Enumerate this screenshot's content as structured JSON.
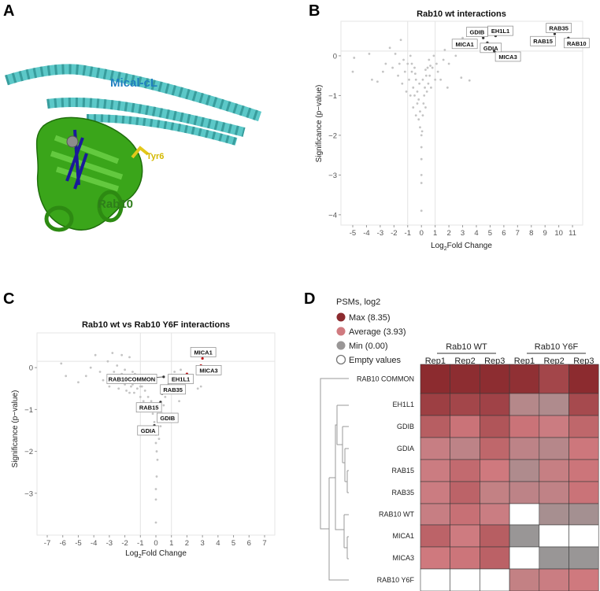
{
  "panels": {
    "a": "A",
    "b": "B",
    "c": "C",
    "d": "D"
  },
  "structure": {
    "mical_label": "Mical-cL",
    "rab_label": "Rab10",
    "tyr_label": "Tyr6",
    "colors": {
      "mical": "#5cc8c8",
      "rab": "#3aa51a",
      "tyr": "#e3c81a",
      "ligand": "#1a1a9a"
    }
  },
  "chart_data": [
    {
      "type": "scatter",
      "title": "Rab10 wt interactions",
      "xlabel_prefix": "Log",
      "xlabel_sub": "2",
      "xlabel_suffix": "Fold Change",
      "ylabel": "Significance (p−value)",
      "xlim": [
        -5.86,
        11.74
      ],
      "ylim": [
        -4.26,
        0.87
      ],
      "xticks": [
        -5,
        -4,
        -3,
        -2,
        -1,
        0,
        1,
        2,
        3,
        4,
        5,
        6,
        7,
        8,
        9,
        10,
        11
      ],
      "yticks": [
        0,
        -1,
        -2,
        -3,
        -4
      ],
      "vlines": [
        -1,
        1
      ],
      "hline": 0.12,
      "grid": false,
      "points": [
        [
          -4.9,
          -0.05
        ],
        [
          -5.0,
          -0.4
        ],
        [
          -3.8,
          0.05
        ],
        [
          -3.6,
          -0.6
        ],
        [
          -3.2,
          -0.65
        ],
        [
          -2.8,
          -0.4
        ],
        [
          -2.6,
          -0.2
        ],
        [
          -2.3,
          0.2
        ],
        [
          -2.1,
          -0.3
        ],
        [
          -1.9,
          0.05
        ],
        [
          -1.7,
          -0.5
        ],
        [
          -1.6,
          -0.2
        ],
        [
          -1.5,
          0.4
        ],
        [
          -1.4,
          -0.7
        ],
        [
          -1.3,
          -0.1
        ],
        [
          -1.2,
          -0.4
        ],
        [
          -1.1,
          -0.9
        ],
        [
          -1.0,
          -0.2
        ],
        [
          -0.9,
          -0.6
        ],
        [
          -0.8,
          0.0
        ],
        [
          -0.8,
          -1.0
        ],
        [
          -0.7,
          -0.4
        ],
        [
          -0.6,
          -0.8
        ],
        [
          -0.6,
          -1.3
        ],
        [
          -0.5,
          -0.3
        ],
        [
          -0.5,
          -1.0
        ],
        [
          -0.4,
          -0.6
        ],
        [
          -0.4,
          -1.5
        ],
        [
          -0.3,
          -1.2
        ],
        [
          -0.3,
          -0.9
        ],
        [
          -0.2,
          -1.6
        ],
        [
          -0.2,
          -1.1
        ],
        [
          -0.1,
          -1.8
        ],
        [
          -0.1,
          -1.4
        ],
        [
          0,
          -2.0
        ],
        [
          0,
          -2.3
        ],
        [
          0,
          -2.6
        ],
        [
          0,
          -3.0
        ],
        [
          0,
          -3.2
        ],
        [
          0,
          -3.9
        ],
        [
          0.05,
          -1.9
        ],
        [
          0.1,
          -1.5
        ],
        [
          0.15,
          -1.2
        ],
        [
          0.2,
          -1.0
        ],
        [
          0.25,
          -0.8
        ],
        [
          0.3,
          -1.3
        ],
        [
          0.35,
          -0.5
        ],
        [
          0.4,
          -0.9
        ],
        [
          0.45,
          -0.3
        ],
        [
          0.5,
          -0.7
        ],
        [
          0.55,
          -0.1
        ],
        [
          0.6,
          -0.5
        ],
        [
          0.7,
          -0.8
        ],
        [
          0.8,
          -0.3
        ],
        [
          0.9,
          0.0
        ],
        [
          1.0,
          -0.6
        ],
        [
          1.1,
          -0.2
        ],
        [
          1.2,
          -0.4
        ],
        [
          1.4,
          -0.6
        ],
        [
          1.6,
          -0.1
        ],
        [
          1.7,
          0.15
        ],
        [
          1.9,
          -0.8
        ],
        [
          2.0,
          -0.2
        ],
        [
          2.5,
          0.0
        ],
        [
          2.9,
          -0.55
        ],
        [
          3.5,
          -0.62
        ],
        [
          3.0,
          0.45
        ],
        [
          -0.7,
          -0.2
        ],
        [
          -0.45,
          -0.45
        ],
        [
          0.3,
          -0.35
        ],
        [
          0.65,
          -0.25
        ],
        [
          -0.15,
          -0.7
        ],
        [
          0.1,
          -0.6
        ]
      ],
      "labeled": [
        {
          "name": "GDIB",
          "x": 4.5,
          "y": 0.45,
          "lx": 4.05,
          "ly": 0.6,
          "color": "#333"
        },
        {
          "name": "EH1L1",
          "x": 5.4,
          "y": 0.5,
          "lx": 5.75,
          "ly": 0.63,
          "color": "#333"
        },
        {
          "name": "MICA1",
          "x": 4.0,
          "y": 0.38,
          "lx": 3.15,
          "ly": 0.3,
          "color": "#333"
        },
        {
          "name": "GDIA",
          "x": 4.8,
          "y": 0.33,
          "lx": 5.05,
          "ly": 0.2,
          "color": "#333"
        },
        {
          "name": "MICA3",
          "x": 5.3,
          "y": 0.12,
          "lx": 6.3,
          "ly": -0.02,
          "color": "#333"
        },
        {
          "name": "RAB35",
          "x": 9.7,
          "y": 0.55,
          "lx": 10.0,
          "ly": 0.7,
          "color": "#333"
        },
        {
          "name": "RAB15",
          "x": 9.2,
          "y": 0.45,
          "lx": 8.85,
          "ly": 0.37,
          "color": "#333"
        },
        {
          "name": "RAB10",
          "x": 10.7,
          "y": 0.45,
          "lx": 11.3,
          "ly": 0.32,
          "color": "#333"
        }
      ]
    },
    {
      "type": "scatter",
      "title": "Rab10 wt vs Rab10 Y6F interactions",
      "xlabel_prefix": "Log",
      "xlabel_sub": "2",
      "xlabel_suffix": "Fold Change",
      "ylabel": "Significance (p−value)",
      "xlim": [
        -7.66,
        7.66
      ],
      "ylim": [
        -4.0,
        0.83
      ],
      "xticks": [
        -7,
        -6,
        -5,
        -4,
        -3,
        -2,
        -1,
        0,
        1,
        2,
        3,
        4,
        5,
        6,
        7
      ],
      "yticks": [
        0,
        -1,
        -2,
        -3
      ],
      "vlines": [
        -1,
        1
      ],
      "hline": 0.15,
      "grid": false,
      "points": [
        [
          -6.1,
          0.1
        ],
        [
          -5.8,
          -0.2
        ],
        [
          -5.0,
          -0.35
        ],
        [
          -4.5,
          -0.2
        ],
        [
          -4.2,
          0.0
        ],
        [
          -3.9,
          0.3
        ],
        [
          -3.6,
          -0.1
        ],
        [
          -3.4,
          -0.3
        ],
        [
          -3.1,
          0.15
        ],
        [
          -3.0,
          -0.45
        ],
        [
          -2.8,
          0.35
        ],
        [
          -2.7,
          -0.1
        ],
        [
          -2.6,
          -0.3
        ],
        [
          -2.5,
          0.05
        ],
        [
          -2.4,
          -0.5
        ],
        [
          -2.3,
          -0.2
        ],
        [
          -2.2,
          0.3
        ],
        [
          -2.1,
          -0.35
        ],
        [
          -2.0,
          -0.05
        ],
        [
          -1.9,
          -0.55
        ],
        [
          -1.8,
          -0.25
        ],
        [
          -1.7,
          0.25
        ],
        [
          -1.6,
          -0.45
        ],
        [
          -1.5,
          -0.1
        ],
        [
          -1.4,
          -0.6
        ],
        [
          -1.3,
          -0.3
        ],
        [
          -1.2,
          -0.5
        ],
        [
          -1.1,
          -0.2
        ],
        [
          -1.0,
          -0.7
        ],
        [
          -0.9,
          -0.45
        ],
        [
          -0.8,
          -0.8
        ],
        [
          -0.7,
          -0.55
        ],
        [
          -0.6,
          -0.9
        ],
        [
          -0.5,
          -0.7
        ],
        [
          -0.4,
          -1.0
        ],
        [
          -0.3,
          -0.8
        ],
        [
          -0.2,
          -1.1
        ],
        [
          -0.1,
          -1.3
        ],
        [
          0.0,
          -1.6
        ],
        [
          0.0,
          -1.8
        ],
        [
          0.05,
          -2.0
        ],
        [
          0.1,
          -2.2
        ],
        [
          0.05,
          -2.6
        ],
        [
          0.0,
          -2.9
        ],
        [
          0.0,
          -3.15
        ],
        [
          0.0,
          -3.7
        ],
        [
          0.2,
          -1.7
        ],
        [
          0.3,
          -1.4
        ],
        [
          0.4,
          -1.1
        ],
        [
          0.5,
          -0.9
        ],
        [
          0.6,
          -0.7
        ],
        [
          0.8,
          -0.4
        ],
        [
          0.9,
          -0.6
        ],
        [
          1.2,
          -0.1
        ],
        [
          1.4,
          -0.5
        ],
        [
          1.5,
          -0.8
        ],
        [
          1.6,
          -0.05
        ],
        [
          2.7,
          -0.5
        ],
        [
          2.9,
          -0.45
        ],
        [
          -1.5,
          -0.4
        ],
        [
          -2.0,
          -0.4
        ],
        [
          -1.2,
          -0.35
        ],
        [
          -1.7,
          -0.6
        ],
        [
          -2.2,
          -0.15
        ],
        [
          -1.0,
          -0.45
        ],
        [
          -2.4,
          -0.3
        ],
        [
          -1.35,
          -0.15
        ]
      ],
      "labeled": [
        {
          "name": "MICA1",
          "x": 3.0,
          "y": 0.22,
          "lx": 3.05,
          "ly": 0.37,
          "color": "#c0161a"
        },
        {
          "name": "MICA3",
          "x": 2.9,
          "y": 0.05,
          "lx": 3.4,
          "ly": -0.06,
          "color": "#c0161a"
        },
        {
          "name": "EH1L1",
          "x": 2.0,
          "y": -0.15,
          "lx": 1.6,
          "ly": -0.27,
          "color": "#c0161a"
        },
        {
          "name": "RAB10COMMON",
          "x": 0.5,
          "y": -0.22,
          "lx": -1.55,
          "ly": -0.27,
          "color": "#333"
        },
        {
          "name": "RAB35",
          "x": 0.4,
          "y": -0.62,
          "lx": 1.1,
          "ly": -0.52,
          "color": "#333"
        },
        {
          "name": "RAB15",
          "x": 0.3,
          "y": -0.82,
          "lx": -0.45,
          "ly": -0.95,
          "color": "#333"
        },
        {
          "name": "GDIB",
          "x": 0.2,
          "y": -1.25,
          "lx": 0.75,
          "ly": -1.2,
          "color": "#333"
        },
        {
          "name": "GDIA",
          "x": -0.1,
          "y": -1.38,
          "lx": -0.5,
          "ly": -1.5,
          "color": "#333"
        }
      ]
    },
    {
      "type": "heatmap",
      "legend_title": "PSMs, log2",
      "legend": [
        {
          "label": "Max (8.35)",
          "color": "#8b2a2e"
        },
        {
          "label": "Average (3.93)",
          "color": "#d07a7f"
        },
        {
          "label": "Min (0.00)",
          "color": "#999696"
        },
        {
          "label": "Empty values",
          "color": "#ffffff"
        }
      ],
      "scale": {
        "min": 0.0,
        "avg": 3.93,
        "max": 8.35
      },
      "groups": [
        {
          "label": "Rab10 WT"
        },
        {
          "label": "Rab10 Y6F"
        }
      ],
      "columns": [
        "Rep1",
        "Rep2",
        "Rep3",
        "Rep1",
        "Rep2",
        "Rep3"
      ],
      "rows": [
        "RAB10 COMMON",
        "EH1L1",
        "GDIB",
        "GDIA",
        "RAB15",
        "RAB35",
        "RAB10 WT",
        "MICA1",
        "MICA3",
        "RAB10 Y6F"
      ],
      "values": [
        [
          8.3,
          8.2,
          8.2,
          8.0,
          6.8,
          8.3
        ],
        [
          7.2,
          6.8,
          7.0,
          2.0,
          1.6,
          6.6
        ],
        [
          5.5,
          4.3,
          6.0,
          4.3,
          3.6,
          5.0
        ],
        [
          3.3,
          2.6,
          5.0,
          2.6,
          2.1,
          4.1
        ],
        [
          3.6,
          4.8,
          4.0,
          1.6,
          3.2,
          4.2
        ],
        [
          3.6,
          5.2,
          3.0,
          2.6,
          2.8,
          4.3
        ],
        [
          3.3,
          4.5,
          3.5,
          null,
          1.0,
          0.8
        ],
        [
          5.2,
          3.8,
          5.5,
          0.0,
          null,
          null
        ],
        [
          4.0,
          4.2,
          5.3,
          null,
          0.0,
          0.0
        ],
        [
          null,
          null,
          null,
          3.0,
          3.5,
          4.0
        ]
      ]
    }
  ]
}
